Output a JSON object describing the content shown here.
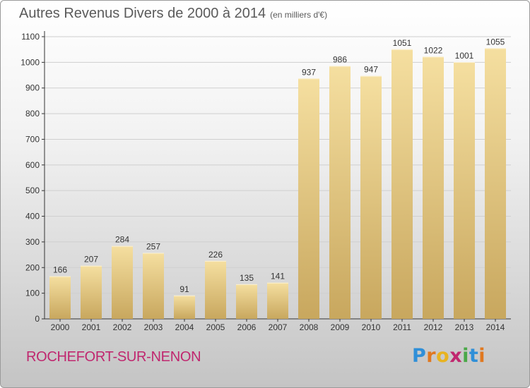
{
  "header": {
    "title": "Autres Revenus Divers de 2000 à 2014",
    "subtitle": "(en milliers d'€)"
  },
  "footer": {
    "commune": "ROCHEFORT-SUR-NENON",
    "logo_letters": [
      "P",
      "r",
      "o",
      "x",
      "i",
      "t",
      "i"
    ],
    "logo_colors": [
      "#2f8fd8",
      "#e07820",
      "#e8b320",
      "#c0276f",
      "#4aa848",
      "#2f8fd8",
      "#e07820"
    ]
  },
  "colors": {
    "bar_top": "#f5dfa0",
    "bar_bottom": "#c8a75e",
    "commune": "#c0276f",
    "axis": "#333333",
    "grid": "#cfcfcf"
  },
  "chart_data": {
    "type": "bar",
    "title": "Autres Revenus Divers de 2000 à 2014",
    "subtitle": "(en milliers d'€)",
    "categories": [
      "2000",
      "2001",
      "2002",
      "2003",
      "2004",
      "2005",
      "2006",
      "2007",
      "2008",
      "2009",
      "2010",
      "2011",
      "2012",
      "2013",
      "2014"
    ],
    "values": [
      166,
      207,
      284,
      257,
      91,
      226,
      135,
      141,
      937,
      986,
      947,
      1051,
      1022,
      1001,
      1055
    ],
    "ylim": [
      0,
      1100
    ],
    "yticks": [
      0,
      100,
      200,
      300,
      400,
      500,
      600,
      700,
      800,
      900,
      1000,
      1100
    ],
    "grid": true,
    "data_labels": true,
    "legend": "none"
  }
}
